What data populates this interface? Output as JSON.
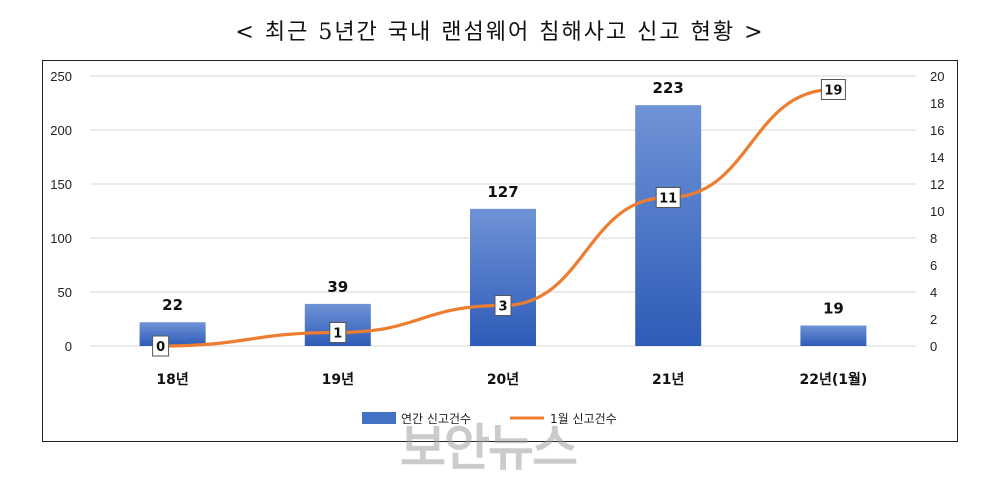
{
  "chart_data": {
    "type": "bar+line",
    "title": "< 최근 5년간 국내 랜섬웨어 침해사고 신고 현황 >",
    "categories": [
      "18년",
      "19년",
      "20년",
      "21년",
      "22년(1월)"
    ],
    "series": [
      {
        "name": "연간 신고건수",
        "type": "bar",
        "axis": "left",
        "values": [
          22,
          39,
          127,
          223,
          19
        ]
      },
      {
        "name": "1월 신고건수",
        "type": "line",
        "axis": "right",
        "values": [
          0,
          1,
          3,
          11,
          19
        ]
      }
    ],
    "y_left": {
      "range": [
        0,
        250
      ],
      "ticks": [
        0,
        50,
        100,
        150,
        200,
        250
      ]
    },
    "y_right": {
      "range": [
        0,
        20
      ],
      "ticks": [
        0,
        2,
        4,
        6,
        8,
        10,
        12,
        14,
        16,
        18,
        20
      ]
    },
    "grid": true,
    "legend": "bottom"
  },
  "colors": {
    "bar": "#4472C4",
    "line": "#ED7D31"
  },
  "watermark": "보안뉴스"
}
